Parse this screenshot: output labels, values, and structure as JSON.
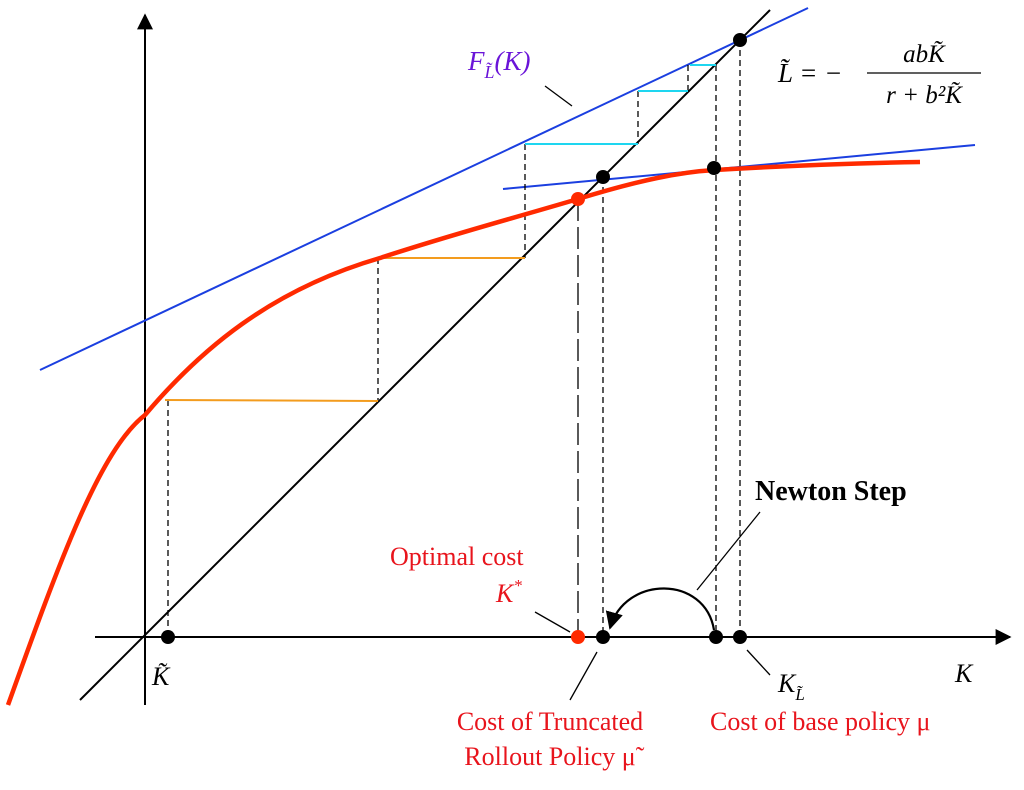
{
  "labels": {
    "f_label": {
      "base": "F",
      "sub": "L̃",
      "rest": "(K)"
    },
    "l_formula": {
      "lhs": "L̃ = −",
      "numerator": "abK̃",
      "denominator": "r + b²K̃"
    },
    "newton_step": "Newton Step",
    "optimal_cost": "Optimal cost",
    "k_star": {
      "base": "K",
      "sup": "*"
    },
    "k_tilde": "K̃",
    "k_l": {
      "base": "K",
      "sub": "L̃"
    },
    "k_axis": "K",
    "truncated": [
      "Cost of Truncated",
      "Rollout Policy μ̃"
    ],
    "base_policy": "Cost of base policy μ"
  }
}
